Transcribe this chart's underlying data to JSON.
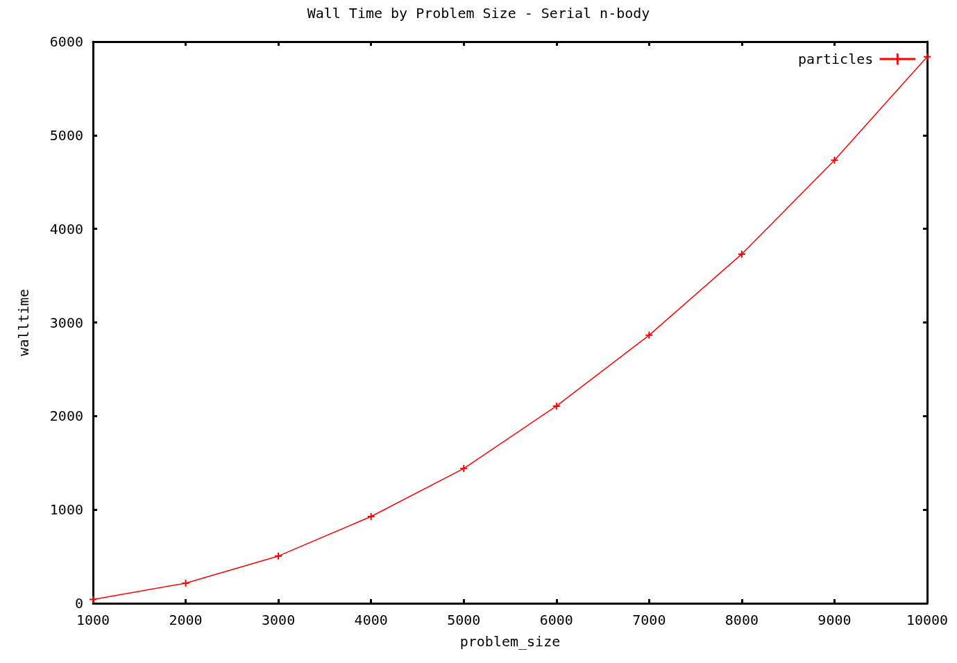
{
  "chart_data": {
    "type": "line",
    "title": "Wall Time by Problem Size - Serial n-body",
    "xlabel": "problem_size",
    "ylabel": "walltime",
    "x": [
      1000,
      2000,
      3000,
      4000,
      5000,
      6000,
      7000,
      8000,
      9000,
      10000
    ],
    "series": [
      {
        "name": "particles",
        "color": "#ff0000",
        "values": [
          40,
          215,
          505,
          927,
          1440,
          2107,
          2864,
          3731,
          4733,
          5838
        ]
      }
    ],
    "xlim": [
      1000,
      10000
    ],
    "xticks": [
      1000,
      2000,
      3000,
      4000,
      5000,
      6000,
      7000,
      8000,
      9000,
      10000
    ],
    "ylim": [
      0,
      6000
    ],
    "yticks": [
      0,
      1000,
      2000,
      3000,
      4000,
      5000,
      6000
    ],
    "grid": false,
    "legend": "top right",
    "marker": "cross",
    "line_style": "solid"
  }
}
